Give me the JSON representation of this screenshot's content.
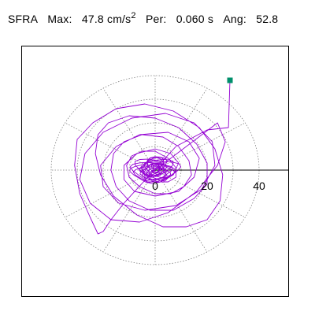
{
  "header": {
    "label": "SFRA",
    "max_label": "Max:",
    "max_value": "47.8",
    "max_unit": "cm/s",
    "max_unit_exp": "2",
    "per_label": "Per:",
    "per_value": "0.060 s",
    "ang_label": "Ang:",
    "ang_value": "52.8"
  },
  "colors": {
    "trace": "#9400d3",
    "marker": "#008f6b",
    "grid": "#808080",
    "axis": "#000000",
    "frame": "#000000"
  },
  "chart_data": {
    "type": "line",
    "title": "SFRA  Max: 47.8 cm/s2  Per: 0.060 s  Ang: 52.8",
    "rings": [
      10,
      20,
      30,
      40
    ],
    "radial_line_step_deg": 30,
    "grid_style": "dotted",
    "tick_labels": [
      {
        "text": "0",
        "value": 0
      },
      {
        "text": "20",
        "value": 20
      },
      {
        "text": "40",
        "value": 40
      }
    ],
    "x_range": [
      -45,
      45
    ],
    "y_range": [
      -41,
      41
    ],
    "max_point": {
      "x": 28.8,
      "y": 38.0
    },
    "series": [
      {
        "x": [
          28.8,
          28.2,
          20.0,
          8.0,
          -2.0,
          -12.0,
          -17.0,
          -20.0,
          -22.0,
          -25.0,
          -29.0,
          -31.0,
          -30.0,
          -24.0,
          -15.0,
          -4.0,
          7.0,
          17.0,
          23.0,
          26.0,
          25.0,
          20.0,
          12.0,
          3.0,
          -7.0,
          -16.0,
          -21.0,
          -23.0,
          -22.0,
          -18.0,
          -10.0,
          0.0,
          9.0,
          16.0,
          20.0,
          20.0,
          15.0,
          7.0,
          -2.0,
          -10.0,
          -15.0,
          -17.0,
          -16.0,
          -12.0,
          -5.0,
          3.0,
          9.0,
          13.0,
          14.0,
          11.0,
          6.0,
          0.0,
          -6.0,
          -10.0,
          -11.0,
          -9.0,
          -5.0,
          0.0,
          5.0,
          8.0,
          8.0,
          5.0,
          1.0,
          -3.0,
          -5.0,
          -4.0,
          -1.0,
          2.0,
          3.0,
          1.0,
          -1.0,
          -2.0,
          -1.0,
          0.0,
          24.0,
          27.0,
          24.0,
          16.0,
          5.0,
          -6.0,
          -17.0,
          -25.0,
          -29.0,
          -27.0,
          -20.0,
          -9.0,
          4.0,
          15.0,
          22.0,
          23.0,
          18.0,
          8.0,
          -4.0,
          -14.0,
          -20.0,
          -21.0,
          -15.0,
          -6.0,
          5.0,
          13.0,
          17.0,
          15.0,
          9.0,
          0.0,
          -8.0,
          -12.0,
          -12.0,
          -7.0,
          0.0,
          6.0,
          9.0,
          7.0,
          2.0,
          -3.0,
          -5.0,
          -3.0,
          0.0,
          2.0
        ],
        "y": [
          38.0,
          18.0,
          17.0,
          10.0,
          -2.0,
          -14.0,
          -21.0,
          -26.0,
          -27.0,
          -20.0,
          -10.0,
          2.0,
          13.0,
          20.0,
          26.0,
          28.0,
          25.0,
          18.0,
          9.0,
          -2.0,
          -13.0,
          -21.0,
          -24.0,
          -24.0,
          -19.0,
          -11.0,
          -2.0,
          7.0,
          15.0,
          20.0,
          23.0,
          22.0,
          18.0,
          11.0,
          3.0,
          -6.0,
          -12.0,
          -17.0,
          -17.0,
          -13.0,
          -7.0,
          0.0,
          7.0,
          12.0,
          15.0,
          14.0,
          10.0,
          4.0,
          -2.0,
          -7.0,
          -10.0,
          -10.0,
          -7.0,
          -3.0,
          2.0,
          6.0,
          8.0,
          8.0,
          5.0,
          1.0,
          -3.0,
          -5.0,
          -5.0,
          -3.0,
          0.0,
          3.0,
          4.0,
          3.0,
          1.0,
          -1.0,
          -2.0,
          -1.0,
          0.0,
          0.0,
          20.0,
          12.0,
          2.0,
          -9.0,
          -18.0,
          -22.0,
          -21.0,
          -14.0,
          -4.0,
          7.0,
          16.0,
          22.0,
          24.0,
          20.0,
          12.0,
          2.0,
          -8.0,
          -15.0,
          -17.0,
          -14.0,
          -7.0,
          2.0,
          10.0,
          15.0,
          16.0,
          12.0,
          5.0,
          -3.0,
          -9.0,
          -11.0,
          -9.0,
          -4.0,
          2.0,
          7.0,
          9.0,
          7.0,
          3.0,
          -2.0,
          -5.0,
          -5.0,
          -2.0,
          1.0,
          2.0,
          1.0
        ]
      }
    ]
  }
}
